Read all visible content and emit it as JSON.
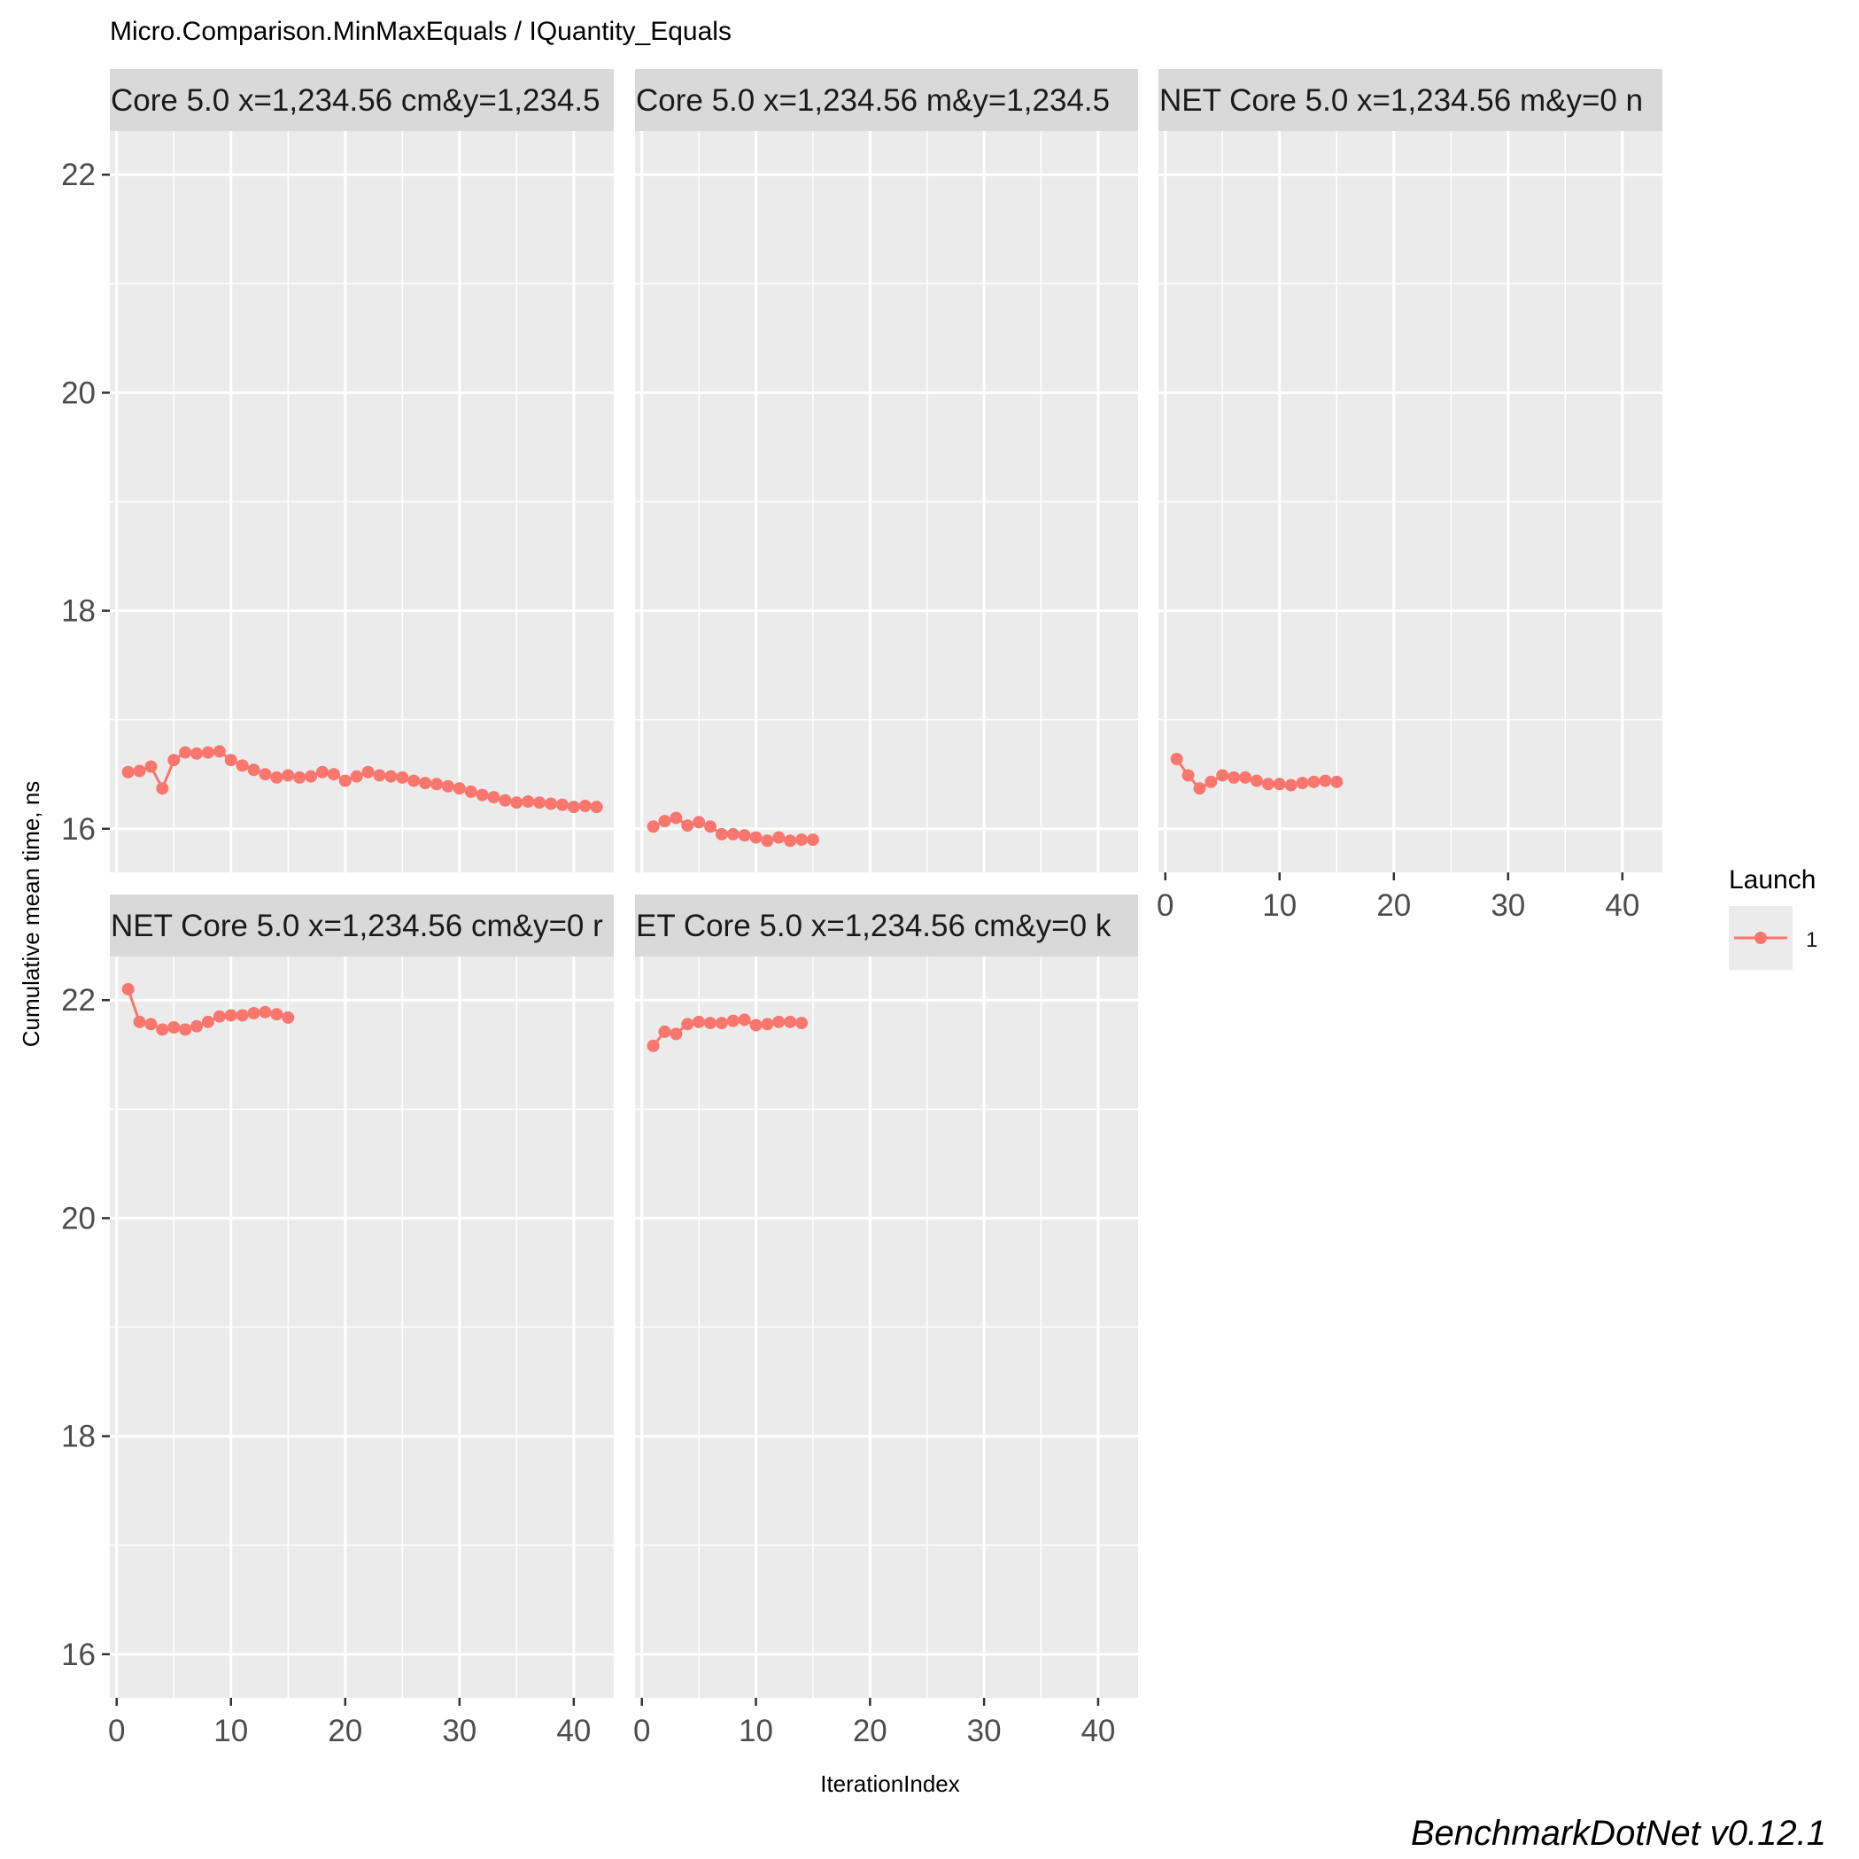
{
  "chart_data": {
    "type": "line",
    "title": "Micro.Comparison.MinMaxEquals / IQuantity_Equals",
    "xlabel": "IterationIndex",
    "ylabel": "Cumulative mean time, ns",
    "xlim": [
      -0.6,
      43.5
    ],
    "ylim": [
      15.6,
      22.4
    ],
    "x_ticks": [
      0,
      10,
      20,
      30,
      40
    ],
    "y_ticks": [
      16,
      18,
      20,
      22
    ],
    "grid": true,
    "legend": {
      "title": "Launch",
      "position": "right",
      "entries": [
        "1"
      ]
    },
    "series_color": "#F8766D",
    "watermark": "BenchmarkDotNet v0.12.1",
    "panels": [
      {
        "strip": "Core 5.0 x=1,234.56 cm&y=1,234.5",
        "x": [
          1,
          2,
          3,
          4,
          5,
          6,
          7,
          8,
          9,
          10,
          11,
          12,
          13,
          14,
          15,
          16,
          17,
          18,
          19,
          20,
          21,
          22,
          23,
          24,
          25,
          26,
          27,
          28,
          29,
          30,
          31,
          32,
          33,
          34,
          35,
          36,
          37,
          38,
          39,
          40,
          41,
          42
        ],
        "y": [
          16.52,
          16.53,
          16.57,
          16.37,
          16.63,
          16.7,
          16.69,
          16.7,
          16.71,
          16.63,
          16.58,
          16.54,
          16.5,
          16.47,
          16.49,
          16.47,
          16.48,
          16.52,
          16.5,
          16.44,
          16.48,
          16.52,
          16.49,
          16.48,
          16.47,
          16.44,
          16.42,
          16.41,
          16.39,
          16.37,
          16.34,
          16.31,
          16.29,
          16.26,
          16.24,
          16.25,
          16.24,
          16.23,
          16.22,
          16.2,
          16.21,
          16.2
        ]
      },
      {
        "strip": "Core 5.0 x=1,234.56 m&y=1,234.5",
        "x": [
          1,
          2,
          3,
          4,
          5,
          6,
          7,
          8,
          9,
          10,
          11,
          12,
          13,
          14,
          15
        ],
        "y": [
          16.02,
          16.07,
          16.1,
          16.03,
          16.06,
          16.02,
          15.95,
          15.95,
          15.94,
          15.92,
          15.89,
          15.92,
          15.89,
          15.9,
          15.9
        ]
      },
      {
        "strip": "NET Core 5.0 x=1,234.56 m&y=0 n",
        "x": [
          1,
          2,
          3,
          4,
          5,
          6,
          7,
          8,
          9,
          10,
          11,
          12,
          13,
          14,
          15
        ],
        "y": [
          16.64,
          16.49,
          16.37,
          16.43,
          16.49,
          16.47,
          16.47,
          16.44,
          16.41,
          16.41,
          16.4,
          16.42,
          16.43,
          16.44,
          16.43
        ]
      },
      {
        "strip": "NET Core 5.0 x=1,234.56 cm&y=0 r",
        "x": [
          1,
          2,
          3,
          4,
          5,
          6,
          7,
          8,
          9,
          10,
          11,
          12,
          13,
          14,
          15
        ],
        "y": [
          22.1,
          21.8,
          21.78,
          21.73,
          21.75,
          21.73,
          21.76,
          21.8,
          21.85,
          21.86,
          21.86,
          21.88,
          21.89,
          21.87,
          21.84
        ]
      },
      {
        "strip": "ET Core 5.0 x=1,234.56 cm&y=0 k",
        "x": [
          1,
          2,
          3,
          4,
          5,
          6,
          7,
          8,
          9,
          10,
          11,
          12,
          13,
          14
        ],
        "y": [
          21.58,
          21.71,
          21.69,
          21.78,
          21.8,
          21.79,
          21.79,
          21.81,
          21.82,
          21.77,
          21.78,
          21.8,
          21.8,
          21.79
        ]
      }
    ]
  }
}
